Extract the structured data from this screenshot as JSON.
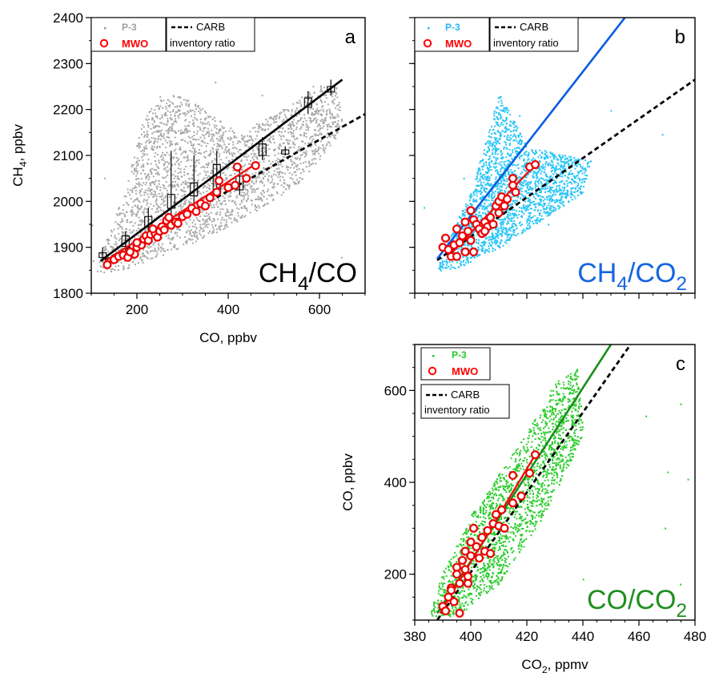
{
  "chart_data": [
    {
      "id": "a",
      "type": "scatter",
      "panel_letter": "a",
      "title_main": "CH",
      "title_sub1": "4",
      "title_rest": "/CO",
      "title_sub2": "",
      "title_color": "#000000",
      "xlabel": "CO, ppbv",
      "xlabel_sub": "",
      "ylabel": "CH",
      "ylabel_sub": "4",
      "ylabel_rest": ", ppbv",
      "xlim": [
        100,
        700
      ],
      "ylim": [
        1800,
        2400
      ],
      "xticks": [
        200,
        400,
        600
      ],
      "yticks": [
        1800,
        1900,
        2000,
        2100,
        2200,
        2300,
        2400
      ],
      "show_x_tick_labels": true,
      "show_y_tick_labels": true,
      "legend": {
        "series1": "P-3",
        "series1_color": "#9e9e9e",
        "series2": "MWO",
        "series2_color": "#ff0000",
        "ref_line1": "CARB",
        "ref_line2": "inventory ratio"
      },
      "p3_color": "#a8a8a8",
      "p3_fit_color": "#000000",
      "p3_fit": [
        [
          120,
          1870
        ],
        [
          650,
          2265
        ]
      ],
      "mwo_fit": [
        [
          130,
          1870
        ],
        [
          455,
          2078
        ]
      ],
      "carb_line": [
        [
          130,
          1872
        ],
        [
          700,
          2190
        ]
      ],
      "p3_cloud": [
        [
          110,
          1842
        ],
        [
          180,
          1855
        ],
        [
          300,
          1900
        ],
        [
          420,
          1955
        ],
        [
          560,
          2040
        ],
        [
          650,
          2160
        ],
        [
          640,
          2250
        ],
        [
          600,
          2255
        ],
        [
          500,
          2190
        ],
        [
          420,
          2150
        ],
        [
          350,
          2200
        ],
        [
          290,
          2235
        ],
        [
          250,
          2230
        ],
        [
          215,
          2190
        ],
        [
          180,
          2060
        ],
        [
          150,
          1960
        ],
        [
          120,
          1890
        ]
      ],
      "boxes": [
        [
          125,
          1870,
          1878,
          1888,
          1900
        ],
        [
          175,
          1892,
          1902,
          1925,
          1935
        ],
        [
          225,
          1930,
          1945,
          1967,
          1985
        ],
        [
          275,
          1965,
          1985,
          2015,
          2110
        ],
        [
          325,
          1990,
          2012,
          2040,
          2100
        ],
        [
          375,
          2010,
          2025,
          2080,
          2110
        ],
        [
          425,
          2015,
          2025,
          2055,
          2080
        ],
        [
          475,
          2090,
          2100,
          2125,
          2140
        ],
        [
          525,
          2100,
          2103,
          2112,
          2120
        ],
        [
          575,
          2190,
          2205,
          2225,
          2240
        ],
        [
          625,
          2230,
          2238,
          2250,
          2265
        ]
      ],
      "mwo_points": [
        [
          135,
          1862
        ],
        [
          150,
          1873
        ],
        [
          160,
          1880
        ],
        [
          170,
          1883
        ],
        [
          180,
          1878
        ],
        [
          185,
          1890
        ],
        [
          195,
          1885
        ],
        [
          200,
          1900
        ],
        [
          210,
          1905
        ],
        [
          215,
          1918
        ],
        [
          220,
          1925
        ],
        [
          225,
          1915
        ],
        [
          230,
          1928
        ],
        [
          240,
          1930
        ],
        [
          245,
          1922
        ],
        [
          250,
          1935
        ],
        [
          255,
          1945
        ],
        [
          260,
          1938
        ],
        [
          265,
          1958
        ],
        [
          270,
          1965
        ],
        [
          275,
          1948
        ],
        [
          285,
          1955
        ],
        [
          290,
          1952
        ],
        [
          300,
          1967
        ],
        [
          310,
          1972
        ],
        [
          320,
          1985
        ],
        [
          330,
          1978
        ],
        [
          340,
          1995
        ],
        [
          350,
          1990
        ],
        [
          360,
          2008
        ],
        [
          375,
          2020
        ],
        [
          380,
          2045
        ],
        [
          400,
          2030
        ],
        [
          415,
          2035
        ],
        [
          420,
          2075
        ],
        [
          440,
          2050
        ],
        [
          460,
          2078
        ],
        [
          200,
          1910
        ],
        [
          235,
          1940
        ],
        [
          185,
          1890
        ]
      ]
    },
    {
      "id": "b",
      "type": "scatter",
      "panel_letter": "b",
      "title_main": "CH",
      "title_sub1": "4",
      "title_rest": "/CO",
      "title_sub2": "2",
      "title_color": "#1565e0",
      "xlabel": "",
      "xlabel_sub": "",
      "ylabel": "",
      "ylabel_sub": "",
      "ylabel_rest": "",
      "xlim": [
        380,
        480
      ],
      "ylim": [
        1800,
        2400
      ],
      "xticks": [
        380,
        400,
        420,
        440,
        460,
        480
      ],
      "yticks": [
        1800,
        1900,
        2000,
        2100,
        2200,
        2300,
        2400
      ],
      "show_x_tick_labels": false,
      "show_y_tick_labels": false,
      "legend": {
        "series1": "P-3",
        "series1_color": "#29b6f6",
        "series2": "MWO",
        "series2_color": "#ff0000",
        "ref_line1": "CARB",
        "ref_line2": "inventory ratio"
      },
      "p3_color": "#29c5f6",
      "p3_fit_color": "#0a5ce0",
      "p3_fit": [
        [
          388,
          1875
        ],
        [
          455,
          2400
        ]
      ],
      "mwo_fit": [
        [
          392,
          1880
        ],
        [
          423,
          2080
        ]
      ],
      "carb_line": [
        [
          388,
          1872
        ],
        [
          480,
          2265
        ]
      ],
      "p3_cloud": [
        [
          388,
          1850
        ],
        [
          395,
          1855
        ],
        [
          410,
          1900
        ],
        [
          425,
          1960
        ],
        [
          440,
          2020
        ],
        [
          443,
          2090
        ],
        [
          435,
          2100
        ],
        [
          420,
          2120
        ],
        [
          415,
          2180
        ],
        [
          410,
          2235
        ],
        [
          405,
          2130
        ],
        [
          400,
          2020
        ],
        [
          395,
          1960
        ],
        [
          390,
          1900
        ]
      ],
      "boxes": [],
      "mwo_points": [
        [
          390,
          1900
        ],
        [
          391,
          1920
        ],
        [
          392,
          1895
        ],
        [
          393,
          1880
        ],
        [
          394,
          1905
        ],
        [
          395,
          1940
        ],
        [
          396,
          1910
        ],
        [
          397,
          1925
        ],
        [
          398,
          1890
        ],
        [
          398,
          1955
        ],
        [
          399,
          1935
        ],
        [
          400,
          1915
        ],
        [
          401,
          1960
        ],
        [
          401,
          1890
        ],
        [
          402,
          1950
        ],
        [
          403,
          1940
        ],
        [
          404,
          1930
        ],
        [
          405,
          1955
        ],
        [
          406,
          1945
        ],
        [
          407,
          1965
        ],
        [
          408,
          1950
        ],
        [
          409,
          1990
        ],
        [
          410,
          2000
        ],
        [
          410,
          1975
        ],
        [
          411,
          2010
        ],
        [
          412,
          1990
        ],
        [
          413,
          2005
        ],
        [
          415,
          2035
        ],
        [
          415,
          2050
        ],
        [
          416,
          2020
        ],
        [
          421,
          2075
        ],
        [
          423,
          2080
        ],
        [
          395,
          1880
        ],
        [
          400,
          1980
        ],
        [
          405,
          1935
        ]
      ]
    },
    {
      "id": "c",
      "type": "scatter",
      "panel_letter": "c",
      "title_main": "CO",
      "title_sub1": "",
      "title_rest": "/CO",
      "title_sub2": "2",
      "title_color": "#1f8f1f",
      "xlabel": "CO",
      "xlabel_sub": "2",
      "xlabel_rest": ", ppmv",
      "ylabel": "CO, ppbv",
      "ylabel_sub": "",
      "ylabel_rest": "",
      "xlim": [
        380,
        480
      ],
      "ylim": [
        100,
        700
      ],
      "xticks": [
        380,
        400,
        420,
        440,
        460,
        480
      ],
      "yticks": [
        200,
        400,
        600
      ],
      "show_x_tick_labels": true,
      "show_y_tick_labels": true,
      "legend": {
        "series1": "P-3",
        "series1_color": "#22c922",
        "series2": "MWO",
        "series2_color": "#ff0000",
        "ref_line1": "CARB",
        "ref_line2": "inventory ratio"
      },
      "p3_color": "#2ecc2e",
      "p3_fit_color": "#1a8c1a",
      "p3_fit": [
        [
          388,
          115
        ],
        [
          450,
          700
        ]
      ],
      "mwo_fit": [
        [
          389,
          115
        ],
        [
          423,
          460
        ]
      ],
      "carb_line": [
        [
          388,
          100
        ],
        [
          457,
          700
        ]
      ],
      "p3_cloud": [
        [
          385,
          110
        ],
        [
          395,
          110
        ],
        [
          410,
          180
        ],
        [
          425,
          320
        ],
        [
          440,
          500
        ],
        [
          438,
          650
        ],
        [
          430,
          620
        ],
        [
          420,
          510
        ],
        [
          410,
          420
        ],
        [
          400,
          330
        ],
        [
          390,
          210
        ]
      ],
      "boxes": [],
      "mwo_points": [
        [
          390,
          130
        ],
        [
          391,
          120
        ],
        [
          392,
          150
        ],
        [
          393,
          170
        ],
        [
          394,
          140
        ],
        [
          395,
          200
        ],
        [
          395,
          215
        ],
        [
          396,
          180
        ],
        [
          397,
          230
        ],
        [
          398,
          210
        ],
        [
          398,
          250
        ],
        [
          399,
          195
        ],
        [
          400,
          240
        ],
        [
          400,
          270
        ],
        [
          401,
          300
        ],
        [
          402,
          260
        ],
        [
          403,
          235
        ],
        [
          404,
          280
        ],
        [
          405,
          250
        ],
        [
          406,
          295
        ],
        [
          407,
          245
        ],
        [
          408,
          310
        ],
        [
          409,
          330
        ],
        [
          410,
          305
        ],
        [
          411,
          340
        ],
        [
          412,
          300
        ],
        [
          415,
          355
        ],
        [
          415,
          415
        ],
        [
          418,
          370
        ],
        [
          421,
          420
        ],
        [
          423,
          460
        ],
        [
          396,
          115
        ],
        [
          399,
          180
        ],
        [
          393,
          165
        ]
      ]
    }
  ]
}
